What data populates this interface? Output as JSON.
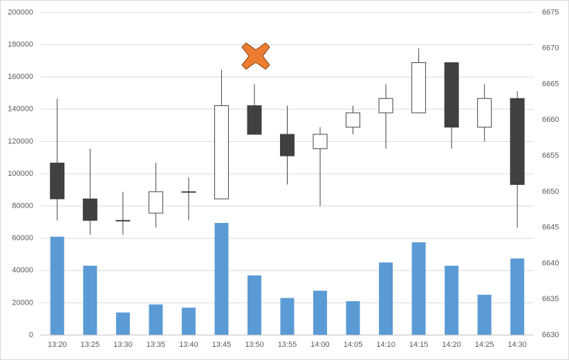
{
  "chart_data": {
    "type": "candlestick",
    "categories": [
      "13:20",
      "13:25",
      "13:30",
      "13:35",
      "13:40",
      "13:45",
      "13:50",
      "13:55",
      "14:00",
      "14:05",
      "14:10",
      "14:15",
      "14:20",
      "14:25",
      "14:30"
    ],
    "volume": {
      "color": "#5b9bd5",
      "values": [
        61000,
        43000,
        14000,
        19000,
        17000,
        69500,
        37000,
        23000,
        27500,
        21000,
        45000,
        57500,
        43000,
        25000,
        47500
      ]
    },
    "ohlc": {
      "axis": "y2",
      "up_color": "#ffffff",
      "down_color": "#404040",
      "line_color": "#404040",
      "open": [
        6654,
        6649,
        6646,
        6647,
        6650,
        6649,
        6662,
        6658,
        6656,
        6659,
        6661,
        6661,
        6668,
        6659,
        6663
      ],
      "high": [
        6663,
        6656,
        6650,
        6654,
        6652,
        6667,
        6665,
        6662,
        6659,
        6662,
        6665,
        6670,
        6668,
        6665,
        6664
      ],
      "low": [
        6646,
        6644,
        6644,
        6645,
        6646,
        6649,
        6658,
        6651,
        6648,
        6658,
        6656,
        6661,
        6656,
        6657,
        6645
      ],
      "close": [
        6649,
        6646,
        6646,
        6650,
        6650,
        6662,
        6658,
        6655,
        6658,
        6661,
        6663,
        6668,
        6659,
        6663,
        6651
      ]
    },
    "ylim": [
      0,
      200000
    ],
    "yticks": [
      0,
      20000,
      40000,
      60000,
      80000,
      100000,
      120000,
      140000,
      160000,
      180000,
      200000
    ],
    "y2lim": [
      6630,
      6675
    ],
    "y2ticks": [
      6630,
      6635,
      6640,
      6645,
      6650,
      6655,
      6660,
      6665,
      6670,
      6675
    ],
    "grid": true
  }
}
